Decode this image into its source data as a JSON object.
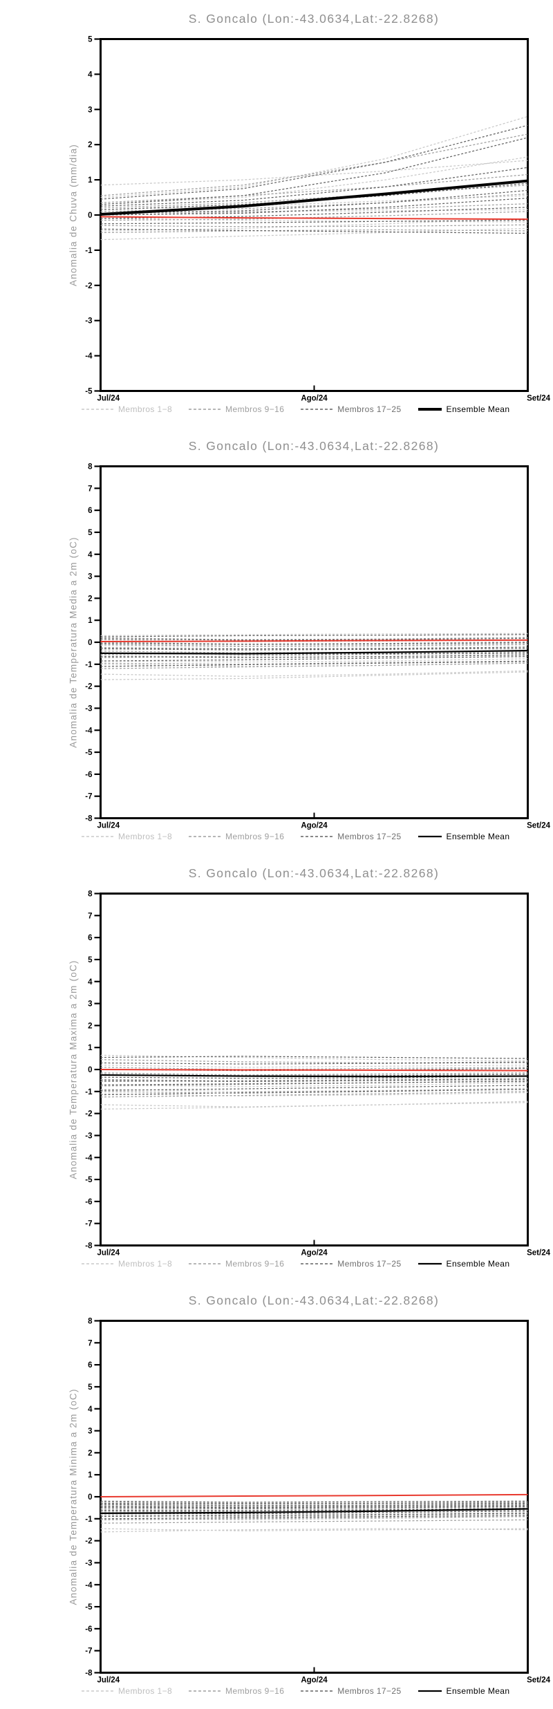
{
  "page": {
    "background": "#ffffff"
  },
  "colors": {
    "member_group_1": "#c8c8c8",
    "member_group_2": "#9e9e9e",
    "member_group_3": "#606060",
    "ensemble_mean": "#000000",
    "reference_line": "#e8392e",
    "title_text": "#8f8f8f",
    "axis_label_text": "#9a9a9a",
    "legend_text_1": "#bebebe",
    "legend_text_2": "#9e9e9e",
    "legend_text_3": "#6e6e6e",
    "legend_text_mean": "#000000",
    "axis": "#000000"
  },
  "chart_data": [
    {
      "id": "chart-precip-anomaly",
      "type": "line",
      "title": "S. Goncalo (Lon:-43.0634,Lat:-22.8268)",
      "ylabel": "Anomalia de Chuva (mm/dia)",
      "ylim": [
        -5,
        5
      ],
      "ytick_step": 1,
      "yticklabels": [
        "5",
        "4",
        "3",
        "2",
        "1",
        "0",
        "-1",
        "-2",
        "-3",
        "-4",
        "-5"
      ],
      "x_ticklabels": [
        "Jul/24",
        "Ago/24",
        "Set/24"
      ],
      "grid": false,
      "legend_position": "bottom",
      "mean_linewidth": 4,
      "legend": [
        {
          "label": "Membros 1−8",
          "style": "dashed",
          "color_key": "member_group_1",
          "text_color_key": "legend_text_1"
        },
        {
          "label": "Membros 9−16",
          "style": "dashed",
          "color_key": "member_group_2",
          "text_color_key": "legend_text_2"
        },
        {
          "label": "Membros 17−25",
          "style": "dashed",
          "color_key": "member_group_3",
          "text_color_key": "legend_text_3"
        },
        {
          "label": "Ensemble Mean",
          "style": "solid",
          "color_key": "ensemble_mean",
          "text_color_key": "legend_text_mean"
        }
      ],
      "series": {
        "members_1_8": [
          [
            0.85,
            1.0,
            1.25,
            1.55
          ],
          [
            0.5,
            0.8,
            1.6,
            2.8
          ],
          [
            0.3,
            0.5,
            1.0,
            1.65
          ],
          [
            0.15,
            0.25,
            0.4,
            0.55
          ],
          [
            0.05,
            0.1,
            0.12,
            0.15
          ],
          [
            -0.1,
            -0.15,
            -0.18,
            -0.2
          ],
          [
            -0.45,
            -0.38,
            -0.25,
            -0.1
          ],
          [
            -0.7,
            -0.6,
            -0.5,
            -0.38
          ]
        ],
        "members_9_16": [
          [
            0.55,
            0.85,
            1.5,
            2.3
          ],
          [
            0.35,
            0.55,
            0.8,
            1.15
          ],
          [
            0.2,
            0.35,
            0.6,
            0.85
          ],
          [
            0.1,
            0.18,
            0.35,
            0.6
          ],
          [
            0.0,
            0.08,
            0.18,
            0.32
          ],
          [
            -0.15,
            -0.12,
            -0.02,
            0.1
          ],
          [
            -0.3,
            -0.33,
            -0.32,
            -0.28
          ],
          [
            -0.5,
            -0.45,
            -0.42,
            -0.45
          ]
        ],
        "members_17_25": [
          [
            0.45,
            0.75,
            1.5,
            2.55
          ],
          [
            0.3,
            0.55,
            1.2,
            2.2
          ],
          [
            0.25,
            0.42,
            0.8,
            1.35
          ],
          [
            0.15,
            0.3,
            0.55,
            0.9
          ],
          [
            0.05,
            0.12,
            0.35,
            0.7
          ],
          [
            0.0,
            0.05,
            0.22,
            0.48
          ],
          [
            -0.1,
            -0.04,
            0.08,
            0.22
          ],
          [
            -0.25,
            -0.22,
            -0.18,
            -0.15
          ],
          [
            -0.4,
            -0.44,
            -0.48,
            -0.52
          ]
        ],
        "ensemble_mean": [
          0.02,
          0.25,
          0.6,
          0.97
        ],
        "reference": [
          -0.05,
          -0.08,
          -0.1,
          -0.12
        ]
      }
    },
    {
      "id": "chart-tmean-anomaly",
      "type": "line",
      "title": "S. Goncalo (Lon:-43.0634,Lat:-22.8268)",
      "ylabel": "Anomalia de Temperatura Media a 2m (oC)",
      "ylim": [
        -8,
        8
      ],
      "ytick_step": 1,
      "yticklabels": [
        "8",
        "7",
        "6",
        "5",
        "4",
        "3",
        "2",
        "1",
        "0",
        "-1",
        "-2",
        "-3",
        "-4",
        "-5",
        "-6",
        "-7",
        "-8"
      ],
      "x_ticklabels": [
        "Jul/24",
        "Ago/24",
        "Set/24"
      ],
      "grid": false,
      "legend_position": "bottom",
      "mean_linewidth": 2.2,
      "legend": [
        {
          "label": "Membros 1−8",
          "style": "dashed",
          "color_key": "member_group_1",
          "text_color_key": "legend_text_1"
        },
        {
          "label": "Membros 9−16",
          "style": "dashed",
          "color_key": "member_group_2",
          "text_color_key": "legend_text_2"
        },
        {
          "label": "Membros 17−25",
          "style": "dashed",
          "color_key": "member_group_3",
          "text_color_key": "legend_text_3"
        },
        {
          "label": "Ensemble Mean",
          "style": "solid",
          "color_key": "ensemble_mean",
          "text_color_key": "legend_text_mean"
        }
      ],
      "series": {
        "members_1_8": [
          [
            0.3,
            0.35,
            0.38,
            0.4
          ],
          [
            -0.15,
            -0.2,
            -0.18,
            -0.12
          ],
          [
            -0.6,
            -0.68,
            -0.65,
            -0.55
          ],
          [
            -1.0,
            -1.1,
            -1.05,
            -0.95
          ],
          [
            -1.45,
            -1.55,
            -1.45,
            -1.3
          ],
          [
            -1.7,
            -1.65,
            -1.5,
            -1.35
          ],
          [
            0.1,
            0.02,
            0.05,
            0.12
          ],
          [
            -0.85,
            -0.9,
            -0.85,
            -0.75
          ]
        ],
        "members_9_16": [
          [
            0.2,
            0.12,
            0.15,
            0.22
          ],
          [
            -0.1,
            -0.18,
            -0.15,
            -0.08
          ],
          [
            -0.4,
            -0.48,
            -0.45,
            -0.38
          ],
          [
            -0.7,
            -0.62,
            -0.55,
            -0.5
          ],
          [
            -0.95,
            -1.0,
            -0.92,
            -0.85
          ],
          [
            -1.2,
            -1.12,
            -1.05,
            -0.95
          ],
          [
            0.0,
            -0.08,
            -0.05,
            0.02
          ],
          [
            -0.55,
            -0.5,
            -0.48,
            -0.42
          ]
        ],
        "members_17_25": [
          [
            0.25,
            0.3,
            0.32,
            0.35
          ],
          [
            -0.05,
            -0.1,
            -0.08,
            -0.02
          ],
          [
            -0.3,
            -0.35,
            -0.32,
            -0.28
          ],
          [
            -0.5,
            -0.55,
            -0.52,
            -0.48
          ],
          [
            -0.65,
            -0.7,
            -0.65,
            -0.58
          ],
          [
            -0.85,
            -0.8,
            -0.72,
            -0.65
          ],
          [
            -1.1,
            -1.02,
            -0.95,
            -0.88
          ],
          [
            0.15,
            0.1,
            0.12,
            0.18
          ],
          [
            -0.25,
            -0.3,
            -0.28,
            -0.22
          ]
        ],
        "ensemble_mean": [
          -0.5,
          -0.52,
          -0.46,
          -0.38
        ],
        "reference": [
          0.03,
          0.05,
          0.08,
          0.1
        ]
      }
    },
    {
      "id": "chart-tmax-anomaly",
      "type": "line",
      "title": "S. Goncalo (Lon:-43.0634,Lat:-22.8268)",
      "ylabel": "Anomalia de Temperatura Maxima a 2m (oC)",
      "ylim": [
        -8,
        8
      ],
      "ytick_step": 1,
      "yticklabels": [
        "8",
        "7",
        "6",
        "5",
        "4",
        "3",
        "2",
        "1",
        "0",
        "-1",
        "-2",
        "-3",
        "-4",
        "-5",
        "-6",
        "-7",
        "-8"
      ],
      "x_ticklabels": [
        "Jul/24",
        "Ago/24",
        "Set/24"
      ],
      "grid": false,
      "legend_position": "bottom",
      "mean_linewidth": 2.2,
      "legend": [
        {
          "label": "Membros 1−8",
          "style": "dashed",
          "color_key": "member_group_1",
          "text_color_key": "legend_text_1"
        },
        {
          "label": "Membros 9−16",
          "style": "dashed",
          "color_key": "member_group_2",
          "text_color_key": "legend_text_2"
        },
        {
          "label": "Membros 17−25",
          "style": "dashed",
          "color_key": "member_group_3",
          "text_color_key": "legend_text_3"
        },
        {
          "label": "Ensemble Mean",
          "style": "solid",
          "color_key": "ensemble_mean",
          "text_color_key": "legend_text_mean"
        }
      ],
      "series": {
        "members_1_8": [
          [
            0.65,
            0.55,
            0.45,
            0.4
          ],
          [
            -0.2,
            -0.28,
            -0.25,
            -0.2
          ],
          [
            -0.7,
            -0.78,
            -0.72,
            -0.6
          ],
          [
            -1.1,
            -1.2,
            -1.15,
            -1.05
          ],
          [
            -1.6,
            -1.7,
            -1.6,
            -1.45
          ],
          [
            -1.8,
            -1.72,
            -1.6,
            -1.5
          ],
          [
            0.2,
            0.1,
            0.15,
            0.2
          ],
          [
            -0.9,
            -1.0,
            -0.95,
            -0.85
          ]
        ],
        "members_9_16": [
          [
            0.45,
            0.35,
            0.3,
            0.35
          ],
          [
            0.1,
            0.0,
            0.05,
            0.1
          ],
          [
            -0.15,
            -0.25,
            -0.2,
            -0.15
          ],
          [
            -0.45,
            -0.52,
            -0.48,
            -0.4
          ],
          [
            -0.75,
            -0.68,
            -0.6,
            -0.55
          ],
          [
            -1.0,
            -1.08,
            -1.0,
            -0.9
          ],
          [
            -1.25,
            -1.18,
            -1.1,
            -1.0
          ],
          [
            -0.55,
            -0.5,
            -0.45,
            -0.4
          ]
        ],
        "members_17_25": [
          [
            0.55,
            0.6,
            0.55,
            0.5
          ],
          [
            0.3,
            0.25,
            0.28,
            0.32
          ],
          [
            0.0,
            -0.05,
            -0.02,
            0.05
          ],
          [
            -0.25,
            -0.3,
            -0.28,
            -0.22
          ],
          [
            -0.5,
            -0.55,
            -0.5,
            -0.45
          ],
          [
            -0.7,
            -0.65,
            -0.6,
            -0.52
          ],
          [
            -0.95,
            -0.88,
            -0.8,
            -0.72
          ],
          [
            -1.15,
            -1.05,
            -0.98,
            -0.9
          ],
          [
            -0.35,
            -0.4,
            -0.38,
            -0.3
          ]
        ],
        "ensemble_mean": [
          -0.25,
          -0.3,
          -0.32,
          -0.3
        ],
        "reference": [
          0.0,
          -0.02,
          -0.03,
          -0.05
        ]
      }
    },
    {
      "id": "chart-tmin-anomaly",
      "type": "line",
      "title": "S. Goncalo (Lon:-43.0634,Lat:-22.8268)",
      "ylabel": "Anomalia de Temperatura Minima a 2m (oC)",
      "ylim": [
        -8,
        8
      ],
      "ytick_step": 1,
      "yticklabels": [
        "8",
        "7",
        "6",
        "5",
        "4",
        "3",
        "2",
        "1",
        "0",
        "-1",
        "-2",
        "-3",
        "-4",
        "-5",
        "-6",
        "-7",
        "-8"
      ],
      "x_ticklabels": [
        "Jul/24",
        "Ago/24",
        "Set/24"
      ],
      "grid": false,
      "legend_position": "bottom",
      "mean_linewidth": 2.2,
      "legend": [
        {
          "label": "Membros 1−8",
          "style": "dashed",
          "color_key": "member_group_1",
          "text_color_key": "legend_text_1"
        },
        {
          "label": "Membros 9−16",
          "style": "dashed",
          "color_key": "member_group_2",
          "text_color_key": "legend_text_2"
        },
        {
          "label": "Membros 17−25",
          "style": "dashed",
          "color_key": "member_group_3",
          "text_color_key": "legend_text_3"
        },
        {
          "label": "Ensemble Mean",
          "style": "solid",
          "color_key": "ensemble_mean",
          "text_color_key": "legend_text_mean"
        }
      ],
      "series": {
        "members_1_8": [
          [
            -0.3,
            -0.35,
            -0.32,
            -0.3
          ],
          [
            -0.55,
            -0.6,
            -0.55,
            -0.5
          ],
          [
            -0.8,
            -0.85,
            -0.8,
            -0.72
          ],
          [
            -1.0,
            -1.05,
            -0.98,
            -0.9
          ],
          [
            -1.45,
            -1.55,
            -1.5,
            -1.45
          ],
          [
            -1.6,
            -1.5,
            -1.45,
            -1.5
          ],
          [
            -0.45,
            -0.5,
            -0.48,
            -0.42
          ],
          [
            -0.7,
            -0.75,
            -0.7,
            -0.62
          ]
        ],
        "members_9_16": [
          [
            -0.25,
            -0.3,
            -0.28,
            -0.25
          ],
          [
            -0.5,
            -0.55,
            -0.5,
            -0.45
          ],
          [
            -0.65,
            -0.7,
            -0.65,
            -0.6
          ],
          [
            -0.85,
            -0.9,
            -0.85,
            -0.78
          ],
          [
            -1.05,
            -1.0,
            -0.95,
            -0.9
          ],
          [
            -1.2,
            -1.15,
            -1.1,
            -1.05
          ],
          [
            -0.4,
            -0.45,
            -0.42,
            -0.38
          ],
          [
            -0.6,
            -0.62,
            -0.58,
            -0.52
          ]
        ],
        "members_17_25": [
          [
            -0.2,
            -0.25,
            -0.22,
            -0.2
          ],
          [
            -0.35,
            -0.4,
            -0.38,
            -0.33
          ],
          [
            -0.5,
            -0.52,
            -0.5,
            -0.45
          ],
          [
            -0.62,
            -0.65,
            -0.6,
            -0.55
          ],
          [
            -0.75,
            -0.78,
            -0.72,
            -0.65
          ],
          [
            -0.9,
            -0.85,
            -0.8,
            -0.75
          ],
          [
            -1.0,
            -0.95,
            -0.9,
            -0.85
          ],
          [
            -0.3,
            -0.32,
            -0.3,
            -0.28
          ],
          [
            -0.45,
            -0.48,
            -0.44,
            -0.4
          ]
        ],
        "ensemble_mean": [
          -0.75,
          -0.72,
          -0.65,
          -0.55
        ],
        "reference": [
          0.0,
          0.03,
          0.06,
          0.1
        ]
      }
    }
  ]
}
